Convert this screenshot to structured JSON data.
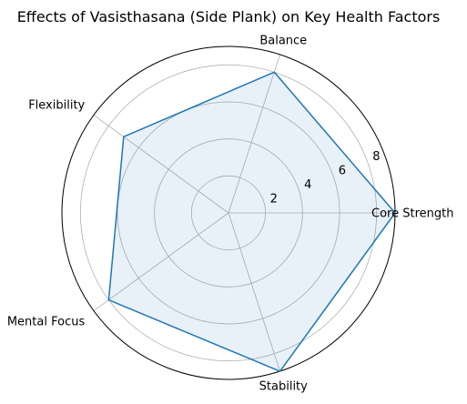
{
  "chart_data": {
    "type": "radar",
    "title": "Effects of Vasisthasana (Side Plank) on Key Health Factors",
    "categories": [
      "Core Strength",
      "Balance",
      "Flexibility",
      "Mental Focus",
      "Stability"
    ],
    "series": [
      {
        "values": [
          9,
          8,
          7,
          8,
          9
        ],
        "color": "#1f77b4",
        "fill": "#1f77b4",
        "fill_alpha": 0.1
      }
    ],
    "rlim": [
      0,
      9
    ],
    "r_ticks": [
      2,
      4,
      6,
      8
    ],
    "r_tick_labels": [
      "2",
      "4",
      "6",
      "8"
    ],
    "grid": true,
    "grid_color": "#b0b0b0"
  }
}
